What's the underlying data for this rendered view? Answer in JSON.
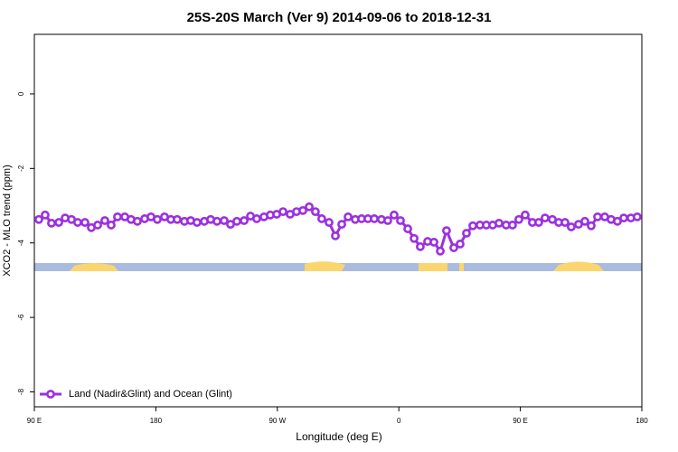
{
  "chart_data": {
    "type": "line",
    "title": "25S-20S March (Ver 9)   2014-09-06 to 2018-12-31",
    "x_label": "Longitude (deg E)",
    "y_label": "XCO2 - MLO trend (ppm)",
    "x": [
      93.3,
      98.0,
      102.7,
      108.1,
      112.8,
      117.5,
      122.1,
      127.5,
      132.2,
      136.9,
      142.2,
      146.9,
      151.6,
      157.0,
      161.6,
      166.3,
      171.7,
      176.4,
      181.1,
      186.4,
      191.1,
      195.8,
      201.2,
      205.8,
      210.5,
      215.9,
      220.6,
      225.3,
      230.6,
      235.3,
      240.0,
      245.4,
      250.1,
      254.7,
      260.1,
      264.8,
      269.5,
      274.2,
      279.5,
      284.2,
      288.9,
      293.6,
      298.2,
      302.9,
      308.3,
      313.0,
      317.7,
      322.4,
      327.7,
      332.4,
      337.1,
      341.8,
      347.1,
      351.8,
      356.5,
      361.2,
      366.6,
      371.3,
      375.9,
      381.3,
      386.0,
      390.7,
      395.3,
      400.7,
      405.4,
      410.1,
      414.8,
      420.1,
      424.8,
      429.5,
      434.2,
      439.5,
      444.2,
      448.9,
      453.6,
      458.9,
      463.6,
      468.3,
      473.7,
      478.4,
      483.1,
      487.7,
      493.1,
      497.8,
      502.5,
      507.2,
      512.5,
      517.2,
      521.9,
      526.6,
      531.9,
      536.6
    ],
    "series": [
      {
        "name": "Land (Nadir&Glint) and Ocean (Glint)",
        "color": "#9b30e0",
        "values": [
          -3.37,
          -3.25,
          -3.47,
          -3.45,
          -3.33,
          -3.37,
          -3.45,
          -3.45,
          -3.59,
          -3.52,
          -3.4,
          -3.52,
          -3.3,
          -3.3,
          -3.37,
          -3.42,
          -3.35,
          -3.3,
          -3.37,
          -3.3,
          -3.37,
          -3.37,
          -3.42,
          -3.4,
          -3.45,
          -3.42,
          -3.37,
          -3.42,
          -3.4,
          -3.5,
          -3.42,
          -3.4,
          -3.28,
          -3.35,
          -3.3,
          -3.25,
          -3.23,
          -3.16,
          -3.23,
          -3.16,
          -3.13,
          -3.03,
          -3.16,
          -3.35,
          -3.45,
          -3.81,
          -3.5,
          -3.3,
          -3.37,
          -3.35,
          -3.35,
          -3.35,
          -3.37,
          -3.4,
          -3.25,
          -3.4,
          -3.62,
          -3.88,
          -4.1,
          -3.96,
          -3.98,
          -4.22,
          -3.67,
          -4.13,
          -4.03,
          -3.74,
          -3.54,
          -3.52,
          -3.52,
          -3.52,
          -3.47,
          -3.52,
          -3.52,
          -3.37,
          -3.25,
          -3.45,
          -3.45,
          -3.33,
          -3.37,
          -3.45,
          -3.45,
          -3.57,
          -3.5,
          -3.42,
          -3.54,
          -3.3,
          -3.3,
          -3.37,
          -3.42,
          -3.33,
          -3.33,
          -3.3
        ]
      }
    ],
    "xlim": [
      90,
      540
    ],
    "xticks": [
      {
        "value": 90,
        "label": "90 E"
      },
      180,
      {
        "value": 270,
        "label": "90 W"
      },
      {
        "value": 360,
        "label": "0"
      },
      {
        "value": 450,
        "label": "90 E"
      },
      {
        "value": 540,
        "label": "180"
      }
    ],
    "ylim": [
      -8.4,
      1.6
    ],
    "yticks": [
      0,
      -2,
      -4,
      -6,
      -8
    ],
    "legend": "bottom-left"
  }
}
